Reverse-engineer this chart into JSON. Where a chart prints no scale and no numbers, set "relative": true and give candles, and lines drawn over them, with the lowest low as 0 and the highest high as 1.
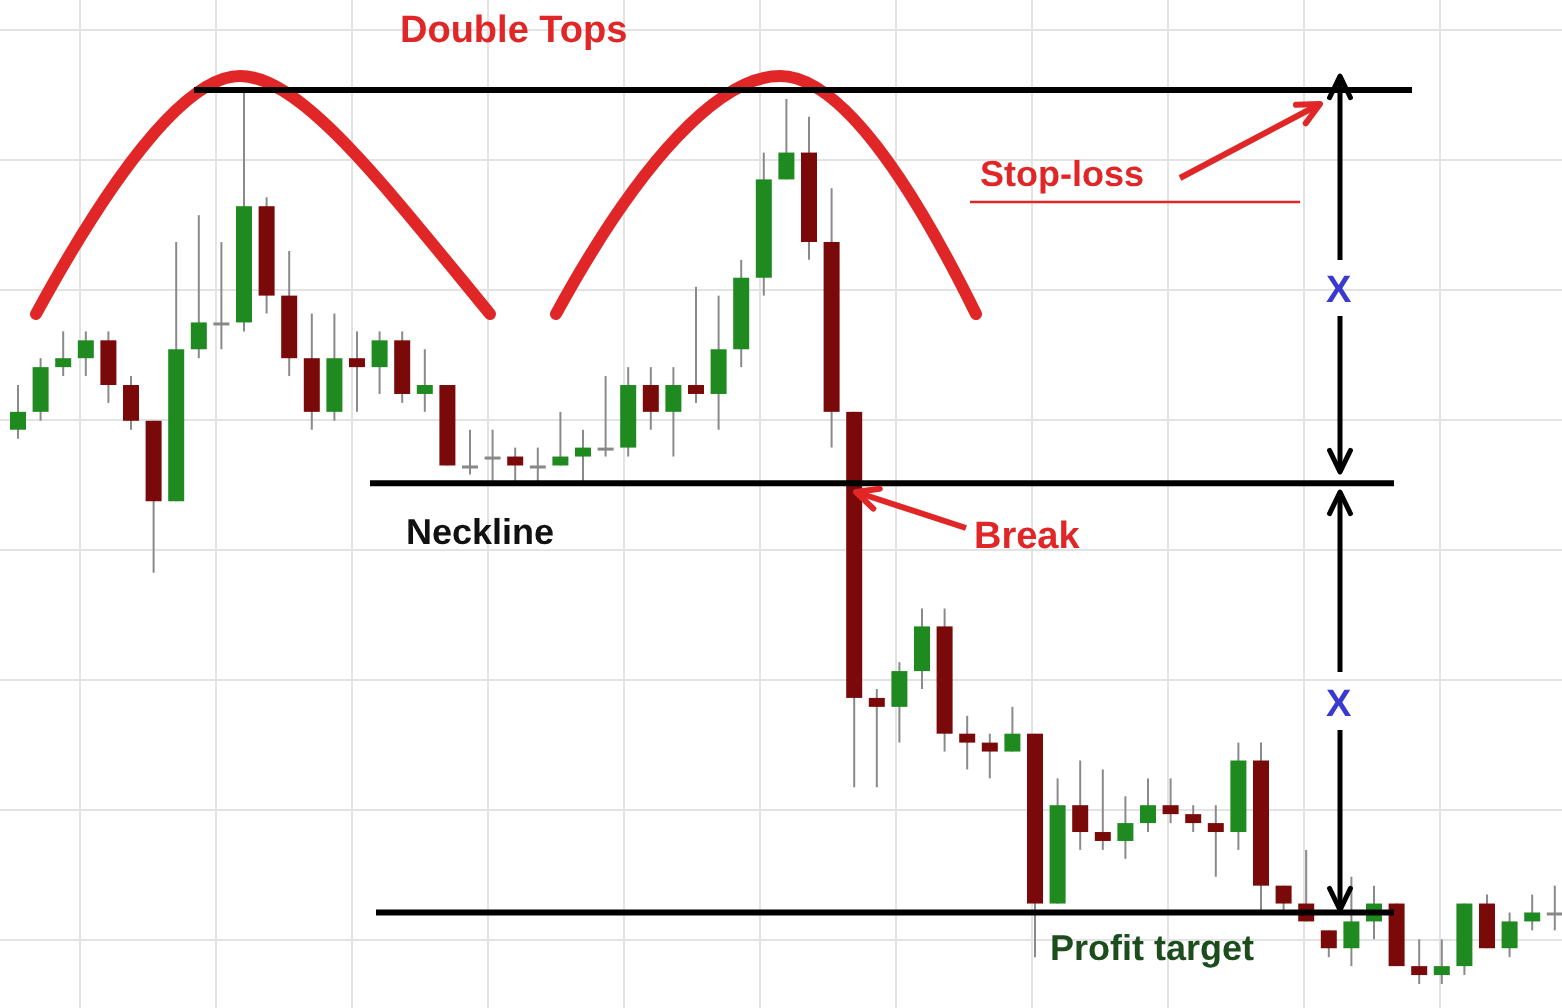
{
  "chart_data": {
    "type": "candlestick",
    "relative": true,
    "grid": true,
    "categories": [
      null,
      null,
      null,
      null,
      null,
      null,
      null,
      null,
      null,
      null,
      null,
      null,
      null,
      null,
      null,
      null,
      null,
      null,
      null,
      null,
      null,
      null,
      null,
      null,
      null,
      null,
      null,
      null,
      null,
      null,
      null,
      null,
      null,
      null,
      null,
      null,
      null,
      null,
      null,
      null,
      null,
      null,
      null,
      null,
      null,
      null,
      null,
      null,
      null,
      null,
      null,
      null,
      null,
      null,
      null,
      null,
      null,
      null,
      null,
      null,
      null,
      null,
      null,
      null,
      null,
      null,
      null,
      null,
      null
    ],
    "ohlc": [
      [
        0.62,
        0.67,
        0.61,
        0.64
      ],
      [
        0.64,
        0.7,
        0.63,
        0.69
      ],
      [
        0.69,
        0.73,
        0.68,
        0.7
      ],
      [
        0.7,
        0.73,
        0.68,
        0.72
      ],
      [
        0.72,
        0.73,
        0.65,
        0.67
      ],
      [
        0.67,
        0.68,
        0.62,
        0.63
      ],
      [
        0.63,
        0.63,
        0.46,
        0.54
      ],
      [
        0.54,
        0.83,
        0.54,
        0.71
      ],
      [
        0.71,
        0.86,
        0.7,
        0.74
      ],
      [
        0.74,
        0.83,
        0.71,
        0.74
      ],
      [
        0.74,
        1,
        0.73,
        0.87
      ],
      [
        0.87,
        0.88,
        0.75,
        0.77
      ],
      [
        0.77,
        0.82,
        0.68,
        0.7
      ],
      [
        0.7,
        0.75,
        0.62,
        0.64
      ],
      [
        0.64,
        0.75,
        0.63,
        0.7
      ],
      [
        0.7,
        0.73,
        0.64,
        0.69
      ],
      [
        0.69,
        0.73,
        0.66,
        0.72
      ],
      [
        0.72,
        0.73,
        0.65,
        0.66
      ],
      [
        0.66,
        0.71,
        0.64,
        0.67
      ],
      [
        0.67,
        0.67,
        0.58,
        0.58
      ],
      [
        0.58,
        0.62,
        0.57,
        0.58
      ],
      [
        0.59,
        0.62,
        0.56,
        0.59
      ],
      [
        0.59,
        0.6,
        0.56,
        0.58
      ],
      [
        0.58,
        0.6,
        0.56,
        0.58
      ],
      [
        0.58,
        0.64,
        0.58,
        0.59
      ],
      [
        0.59,
        0.62,
        0.56,
        0.6
      ],
      [
        0.6,
        0.68,
        0.59,
        0.6
      ],
      [
        0.6,
        0.69,
        0.59,
        0.67
      ],
      [
        0.67,
        0.69,
        0.62,
        0.64
      ],
      [
        0.64,
        0.69,
        0.59,
        0.67
      ],
      [
        0.67,
        0.78,
        0.65,
        0.66
      ],
      [
        0.66,
        0.77,
        0.62,
        0.71
      ],
      [
        0.71,
        0.81,
        0.69,
        0.79
      ],
      [
        0.79,
        0.93,
        0.77,
        0.9
      ],
      [
        0.9,
        0.99,
        0.9,
        0.93
      ],
      [
        0.93,
        0.97,
        0.81,
        0.83
      ],
      [
        0.83,
        0.89,
        0.6,
        0.64
      ],
      [
        0.64,
        0.64,
        0.22,
        0.32
      ],
      [
        0.32,
        0.33,
        0.22,
        0.31
      ],
      [
        0.31,
        0.36,
        0.27,
        0.35
      ],
      [
        0.35,
        0.42,
        0.33,
        0.4
      ],
      [
        0.4,
        0.42,
        0.26,
        0.28
      ],
      [
        0.28,
        0.3,
        0.24,
        0.27
      ],
      [
        0.27,
        0.28,
        0.23,
        0.26
      ],
      [
        0.26,
        0.31,
        0.26,
        0.28
      ],
      [
        0.28,
        0.28,
        0.03,
        0.09
      ],
      [
        0.09,
        0.23,
        0.09,
        0.2
      ],
      [
        0.2,
        0.25,
        0.15,
        0.17
      ],
      [
        0.17,
        0.24,
        0.15,
        0.16
      ],
      [
        0.16,
        0.21,
        0.14,
        0.18
      ],
      [
        0.18,
        0.23,
        0.17,
        0.2
      ],
      [
        0.2,
        0.23,
        0.18,
        0.19
      ],
      [
        0.19,
        0.2,
        0.17,
        0.18
      ],
      [
        0.18,
        0.2,
        0.12,
        0.17
      ],
      [
        0.17,
        0.27,
        0.15,
        0.25
      ],
      [
        0.25,
        0.27,
        0.08,
        0.11
      ],
      [
        0.11,
        0.11,
        0.08,
        0.09
      ],
      [
        0.09,
        0.15,
        0.07,
        0.07
      ],
      [
        0.06,
        0.06,
        0.03,
        0.04
      ],
      [
        0.04,
        0.12,
        0.02,
        0.07
      ],
      [
        0.07,
        0.11,
        0.05,
        0.09
      ],
      [
        0.09,
        0.09,
        0.02,
        0.02
      ],
      [
        0.02,
        0.05,
        0,
        0.01
      ],
      [
        0.01,
        0.05,
        0,
        0.02
      ],
      [
        0.02,
        0.09,
        0.01,
        0.09
      ],
      [
        0.09,
        0.1,
        0.04,
        0.04
      ],
      [
        0.04,
        0.08,
        0.03,
        0.07
      ],
      [
        0.07,
        0.1,
        0.06,
        0.08
      ],
      [
        0.08,
        0.11,
        0.06,
        0.08
      ]
    ],
    "colors": [
      "#1f8a1f",
      "#1f8a1f",
      "#1f8a1f",
      "#1f8a1f",
      "#7a0a0a",
      "#7a0a0a",
      "#7a0a0a",
      "#1f8a1f",
      "#1f8a1f",
      "#888888",
      "#1f8a1f",
      "#7a0a0a",
      "#7a0a0a",
      "#7a0a0a",
      "#1f8a1f",
      "#7a0a0a",
      "#1f8a1f",
      "#7a0a0a",
      "#1f8a1f",
      "#7a0a0a",
      "#888888",
      "#888888",
      "#7a0a0a",
      "#888888",
      "#1f8a1f",
      "#1f8a1f",
      "#888888",
      "#1f8a1f",
      "#7a0a0a",
      "#1f8a1f",
      "#7a0a0a",
      "#1f8a1f",
      "#1f8a1f",
      "#1f8a1f",
      "#1f8a1f",
      "#7a0a0a",
      "#7a0a0a",
      "#7a0a0a",
      "#7a0a0a",
      "#1f8a1f",
      "#1f8a1f",
      "#7a0a0a",
      "#7a0a0a",
      "#7a0a0a",
      "#1f8a1f",
      "#7a0a0a",
      "#1f8a1f",
      "#7a0a0a",
      "#7a0a0a",
      "#1f8a1f",
      "#1f8a1f",
      "#7a0a0a",
      "#7a0a0a",
      "#7a0a0a",
      "#1f8a1f",
      "#7a0a0a",
      "#7a0a0a",
      "#7a0a0a",
      "#7a0a0a",
      "#1f8a1f",
      "#1f8a1f",
      "#7a0a0a",
      "#7a0a0a",
      "#1f8a1f",
      "#1f8a1f",
      "#7a0a0a",
      "#1f8a1f",
      "#1f8a1f",
      "#888888"
    ],
    "ref_lines": [
      {
        "axis": "y",
        "value": 1,
        "label": null,
        "color": "#000000"
      },
      {
        "axis": "y",
        "value": 0.56,
        "label": "Neckline",
        "color": "#000000"
      },
      {
        "axis": "y",
        "value": 0.08,
        "label": "Profit target",
        "color": "#000000"
      }
    ],
    "annotations": [
      "Double Tops",
      "Stop-loss",
      "X",
      "X",
      "Break"
    ]
  }
}
